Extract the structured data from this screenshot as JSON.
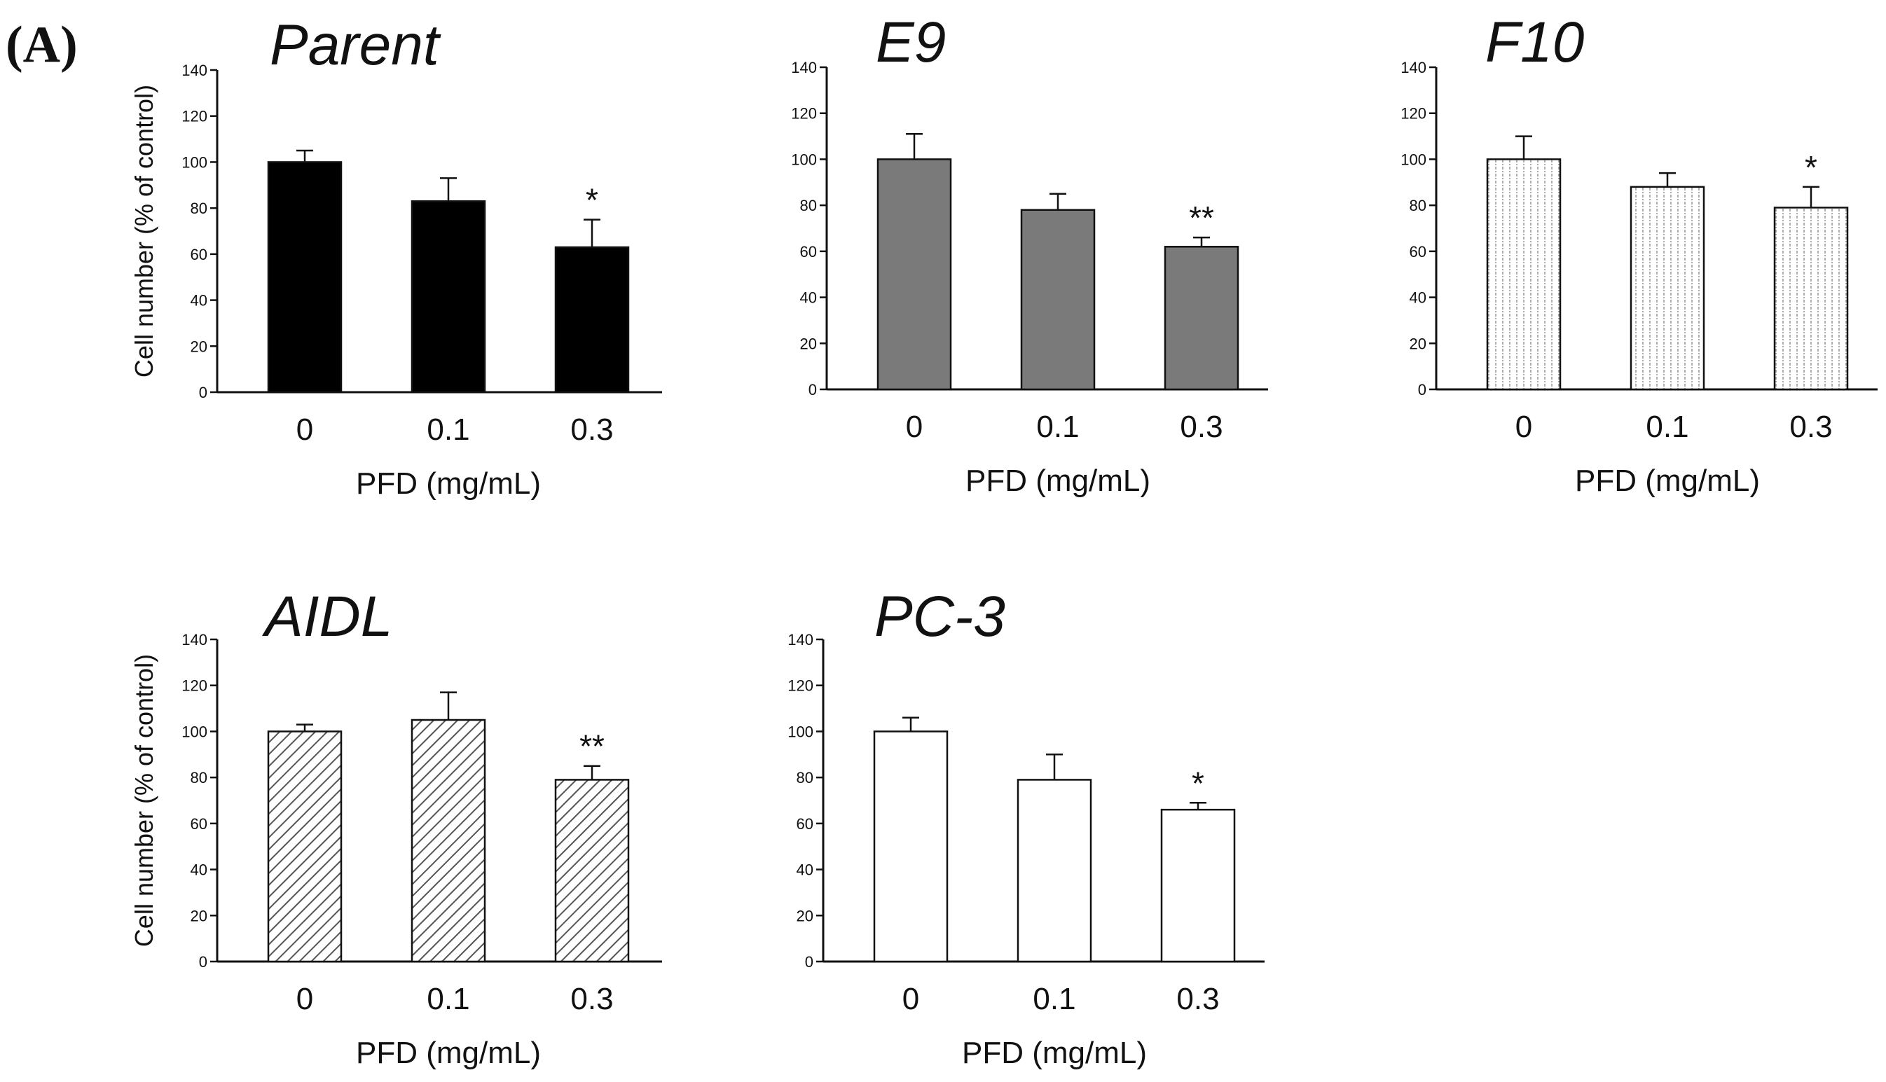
{
  "figure": {
    "panel_label": "(A)"
  },
  "colors": {
    "ink": "#111111",
    "gray_fill": "#7a7a7a",
    "black_fill": "#000000",
    "white_fill": "#ffffff"
  },
  "chart_data": [
    {
      "type": "bar",
      "title": "Parent",
      "categories": [
        "0",
        "0.1",
        "0.3"
      ],
      "values": [
        100,
        83,
        63
      ],
      "errors": [
        5,
        10,
        12
      ],
      "significance": [
        "",
        "",
        "*"
      ],
      "fill": "black",
      "xlabel": "PFD (mg/mL)",
      "ylabel": "Cell number (% of control)",
      "ylim": [
        0,
        140
      ],
      "yticks": [
        "0",
        "20",
        "40",
        "60",
        "80",
        "100",
        "120",
        "140"
      ]
    },
    {
      "type": "bar",
      "title": "E9",
      "categories": [
        "0",
        "0.1",
        "0.3"
      ],
      "values": [
        100,
        78,
        62
      ],
      "errors": [
        11,
        7,
        4
      ],
      "significance": [
        "",
        "",
        "**"
      ],
      "fill": "gray",
      "xlabel": "PFD (mg/mL)",
      "ylabel": "",
      "ylim": [
        0,
        140
      ],
      "yticks": [
        "0",
        "20",
        "40",
        "60",
        "80",
        "100",
        "120",
        "140"
      ]
    },
    {
      "type": "bar",
      "title": "F10",
      "categories": [
        "0",
        "0.1",
        "0.3"
      ],
      "values": [
        100,
        88,
        79
      ],
      "errors": [
        10,
        6,
        9
      ],
      "significance": [
        "",
        "",
        "*"
      ],
      "fill": "dotted",
      "xlabel": "PFD (mg/mL)",
      "ylabel": "",
      "ylim": [
        0,
        140
      ],
      "yticks": [
        "0",
        "20",
        "40",
        "60",
        "80",
        "100",
        "120",
        "140"
      ]
    },
    {
      "type": "bar",
      "title": "AIDL",
      "categories": [
        "0",
        "0.1",
        "0.3"
      ],
      "values": [
        100,
        105,
        79
      ],
      "errors": [
        3,
        12,
        6
      ],
      "significance": [
        "",
        "",
        "**"
      ],
      "fill": "hatched",
      "xlabel": "PFD (mg/mL)",
      "ylabel": "Cell number (% of control)",
      "ylim": [
        0,
        140
      ],
      "yticks": [
        "0",
        "20",
        "40",
        "60",
        "80",
        "100",
        "120",
        "140"
      ]
    },
    {
      "type": "bar",
      "title": "PC-3",
      "categories": [
        "0",
        "0.1",
        "0.3"
      ],
      "values": [
        100,
        79,
        66
      ],
      "errors": [
        6,
        11,
        3
      ],
      "significance": [
        "",
        "",
        "*"
      ],
      "fill": "white",
      "xlabel": "PFD (mg/mL)",
      "ylabel": "",
      "ylim": [
        0,
        140
      ],
      "yticks": [
        "0",
        "20",
        "40",
        "60",
        "80",
        "100",
        "120",
        "140"
      ]
    }
  ]
}
